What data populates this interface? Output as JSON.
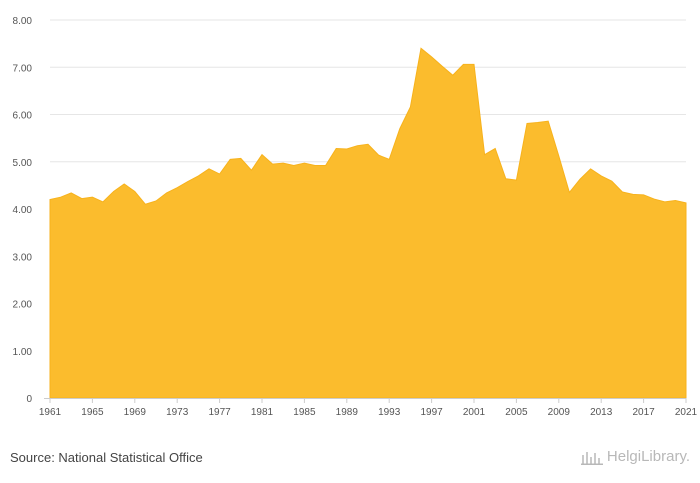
{
  "chart_data": {
    "type": "area",
    "title": "",
    "xlabel": "",
    "ylabel": "",
    "x": [
      1961,
      1962,
      1963,
      1964,
      1965,
      1966,
      1967,
      1968,
      1969,
      1970,
      1971,
      1972,
      1973,
      1974,
      1975,
      1976,
      1977,
      1978,
      1979,
      1980,
      1981,
      1982,
      1983,
      1984,
      1985,
      1986,
      1987,
      1988,
      1989,
      1990,
      1991,
      1992,
      1993,
      1994,
      1995,
      1996,
      1997,
      1998,
      1999,
      2000,
      2001,
      2002,
      2003,
      2004,
      2005,
      2006,
      2007,
      2008,
      2009,
      2010,
      2011,
      2012,
      2013,
      2014,
      2015,
      2016,
      2017,
      2018,
      2019,
      2020,
      2021
    ],
    "values": [
      4.2,
      4.25,
      4.34,
      4.22,
      4.25,
      4.15,
      4.37,
      4.53,
      4.37,
      4.1,
      4.17,
      4.34,
      4.45,
      4.58,
      4.7,
      4.85,
      4.74,
      5.05,
      5.07,
      4.82,
      5.15,
      4.95,
      4.97,
      4.92,
      4.97,
      4.92,
      4.92,
      5.28,
      5.27,
      5.34,
      5.37,
      5.14,
      5.05,
      5.7,
      6.16,
      7.4,
      7.22,
      7.02,
      6.83,
      7.06,
      7.06,
      5.15,
      5.28,
      4.64,
      4.61,
      5.81,
      5.83,
      5.86,
      5.12,
      4.35,
      4.63,
      4.85,
      4.7,
      4.59,
      4.36,
      4.31,
      4.3,
      4.21,
      4.15,
      4.18,
      4.13
    ],
    "xticks": [
      "1961",
      "1965",
      "1969",
      "1973",
      "1977",
      "1981",
      "1985",
      "1989",
      "1993",
      "1997",
      "2001",
      "2005",
      "2009",
      "2013",
      "2017",
      "2021"
    ],
    "yticks": [
      "0",
      "1.00",
      "2.00",
      "3.00",
      "4.00",
      "5.00",
      "6.00",
      "7.00",
      "8.00"
    ],
    "ylim": [
      0,
      8
    ],
    "xlim": [
      1961,
      2021
    ],
    "grid": true,
    "fill_color": "#fbbc2d",
    "line_color": "#f7b21c",
    "grid_color": "#e6e6e6"
  },
  "footer": {
    "source": "Source: National Statistical Office",
    "logo_text": "HelgiLibrary."
  }
}
